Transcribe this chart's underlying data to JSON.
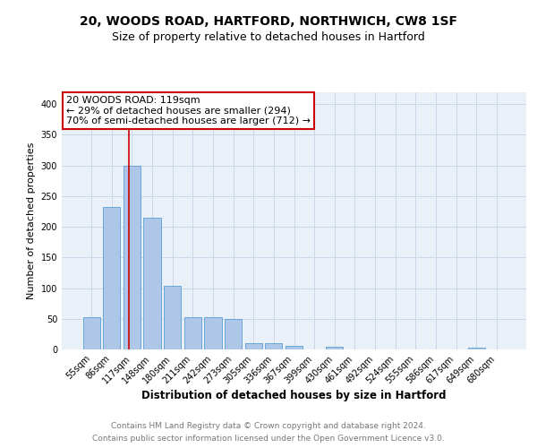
{
  "title1": "20, WOODS ROAD, HARTFORD, NORTHWICH, CW8 1SF",
  "title2": "Size of property relative to detached houses in Hartford",
  "xlabel": "Distribution of detached houses by size in Hartford",
  "ylabel": "Number of detached properties",
  "categories": [
    "55sqm",
    "86sqm",
    "117sqm",
    "148sqm",
    "180sqm",
    "211sqm",
    "242sqm",
    "273sqm",
    "305sqm",
    "336sqm",
    "367sqm",
    "399sqm",
    "430sqm",
    "461sqm",
    "492sqm",
    "524sqm",
    "555sqm",
    "586sqm",
    "617sqm",
    "649sqm",
    "680sqm"
  ],
  "values": [
    53,
    232,
    300,
    215,
    103,
    52,
    52,
    49,
    10,
    10,
    6,
    0,
    4,
    0,
    0,
    0,
    0,
    0,
    0,
    3,
    0
  ],
  "bar_color": "#aec6e8",
  "bar_edge_color": "#5a9fd4",
  "subject_bar_index": 2,
  "subject_line_color": "#cc0000",
  "annotation_line1": "20 WOODS ROAD: 119sqm",
  "annotation_line2": "← 29% of detached houses are smaller (294)",
  "annotation_line3": "70% of semi-detached houses are larger (712) →",
  "annotation_box_color": "#ffffff",
  "annotation_box_edge_color": "#cc0000",
  "ylim": [
    0,
    420
  ],
  "yticks": [
    0,
    50,
    100,
    150,
    200,
    250,
    300,
    350,
    400
  ],
  "grid_color": "#c8d8e8",
  "background_color": "#eaf0f8",
  "footer_line1": "Contains HM Land Registry data © Crown copyright and database right 2024.",
  "footer_line2": "Contains public sector information licensed under the Open Government Licence v3.0.",
  "title1_fontsize": 10,
  "title2_fontsize": 9,
  "xlabel_fontsize": 8.5,
  "ylabel_fontsize": 8,
  "tick_fontsize": 7,
  "annotation_fontsize": 8,
  "footer_fontsize": 6.5
}
